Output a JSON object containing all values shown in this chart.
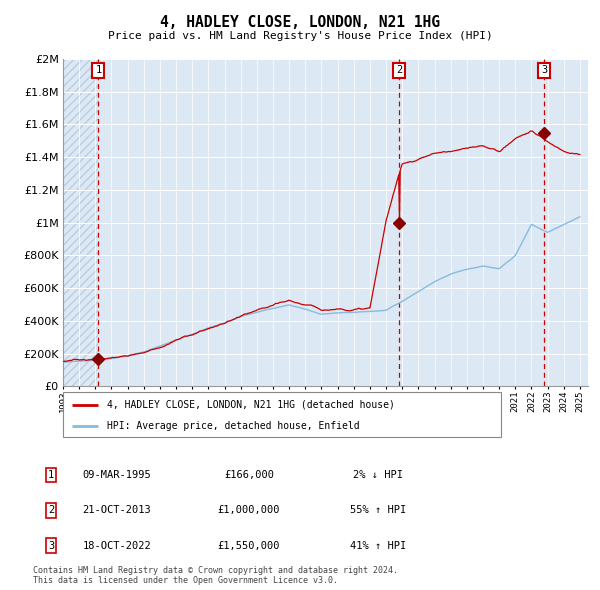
{
  "title": "4, HADLEY CLOSE, LONDON, N21 1HG",
  "subtitle": "Price paid vs. HM Land Registry's House Price Index (HPI)",
  "xlim": [
    1993.0,
    2025.5
  ],
  "ylim": [
    0,
    2000000
  ],
  "yticks": [
    0,
    200000,
    400000,
    600000,
    800000,
    1000000,
    1200000,
    1400000,
    1600000,
    1800000,
    2000000
  ],
  "ytick_labels": [
    "£0",
    "£200K",
    "£400K",
    "£600K",
    "£800K",
    "£1M",
    "£1.2M",
    "£1.4M",
    "£1.6M",
    "£1.8M",
    "£2M"
  ],
  "bg_color": "#dce9f5",
  "hatch_color": "#b8cfe0",
  "grid_color": "#ffffff",
  "sale1_date": 1995.19,
  "sale1_price": 166000,
  "sale1_label": "1",
  "sale2_date": 2013.81,
  "sale2_price": 1000000,
  "sale2_label": "2",
  "sale3_date": 2022.8,
  "sale3_price": 1550000,
  "sale3_label": "3",
  "line_color_red": "#cc0000",
  "line_color_blue": "#88bbdd",
  "marker_color": "#880000",
  "dashed_line_color": "#cc0000",
  "legend_label_red": "4, HADLEY CLOSE, LONDON, N21 1HG (detached house)",
  "legend_label_blue": "HPI: Average price, detached house, Enfield",
  "table_rows": [
    [
      "1",
      "09-MAR-1995",
      "£166,000",
      "2% ↓ HPI"
    ],
    [
      "2",
      "21-OCT-2013",
      "£1,000,000",
      "55% ↑ HPI"
    ],
    [
      "3",
      "18-OCT-2022",
      "£1,550,000",
      "41% ↑ HPI"
    ]
  ],
  "footer": "Contains HM Land Registry data © Crown copyright and database right 2024.\nThis data is licensed under the Open Government Licence v3.0.",
  "xtick_years": [
    1993,
    1994,
    1995,
    1996,
    1997,
    1998,
    1999,
    2000,
    2001,
    2002,
    2003,
    2004,
    2005,
    2006,
    2007,
    2008,
    2009,
    2010,
    2011,
    2012,
    2013,
    2014,
    2015,
    2016,
    2017,
    2018,
    2019,
    2020,
    2021,
    2022,
    2023,
    2024,
    2025
  ],
  "hpi_years": [
    1993,
    1994,
    1995,
    1996,
    1997,
    1998,
    1999,
    2000,
    2001,
    2002,
    2003,
    2004,
    2005,
    2006,
    2007,
    2008,
    2009,
    2010,
    2011,
    2012,
    2013,
    2014,
    2015,
    2016,
    2017,
    2018,
    2019,
    2020,
    2021,
    2022,
    2023,
    2024,
    2025
  ],
  "hpi_values": [
    148000,
    155000,
    162000,
    172000,
    188000,
    210000,
    245000,
    285000,
    320000,
    360000,
    390000,
    430000,
    455000,
    480000,
    500000,
    475000,
    445000,
    455000,
    460000,
    465000,
    475000,
    530000,
    590000,
    650000,
    700000,
    730000,
    750000,
    730000,
    810000,
    1000000,
    950000,
    1000000,
    1050000
  ],
  "prop_years": [
    1993,
    1994,
    1995,
    1996,
    1997,
    1998,
    1999,
    2000,
    2001,
    2002,
    2003,
    2004,
    2005,
    2006,
    2007,
    2008,
    2009,
    2010,
    2011,
    2012,
    2013,
    2014,
    2015,
    2016,
    2017,
    2018,
    2019,
    2020,
    2021,
    2022,
    2023,
    2024,
    2025
  ],
  "prop_values": [
    152000,
    158000,
    166000,
    176000,
    192000,
    214000,
    250000,
    290000,
    325000,
    365000,
    395000,
    435000,
    460000,
    485000,
    505000,
    480000,
    450000,
    460000,
    465000,
    470000,
    1000000,
    1350000,
    1380000,
    1420000,
    1430000,
    1440000,
    1450000,
    1420000,
    1500000,
    1550000,
    1480000,
    1430000,
    1420000
  ]
}
